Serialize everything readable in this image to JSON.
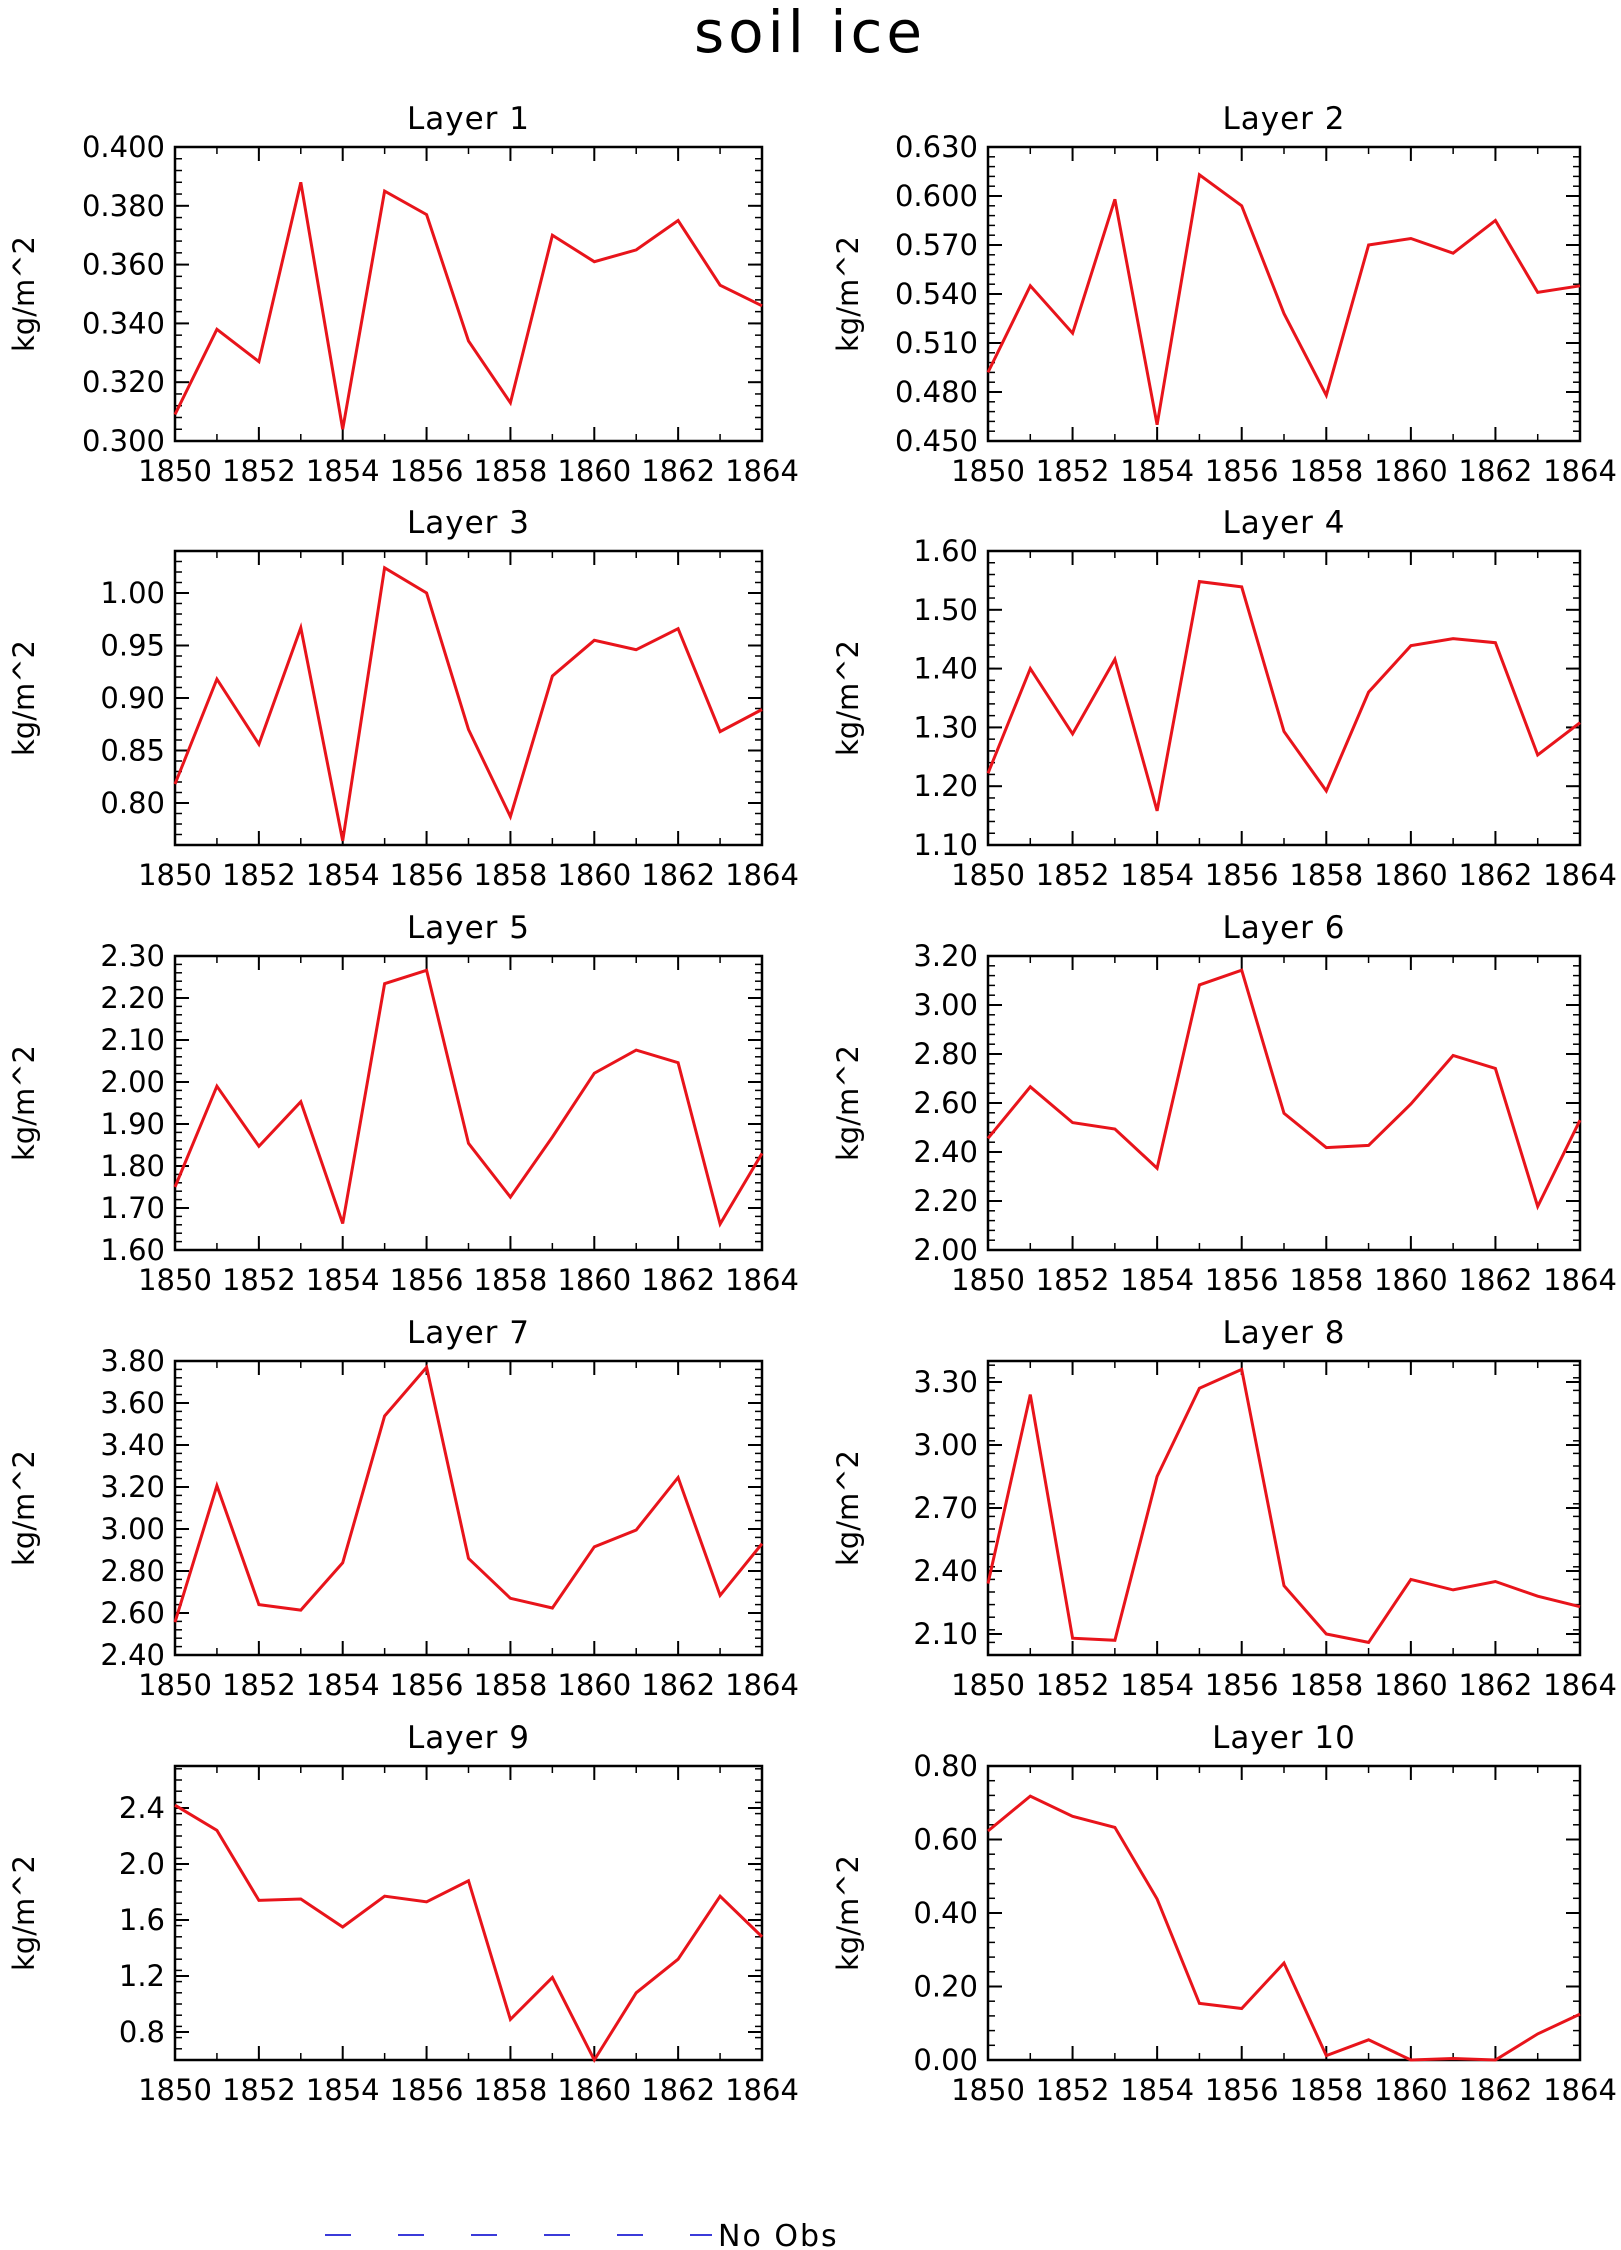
{
  "figure": {
    "title": "soil ice"
  },
  "legend": {
    "label": "No Obs",
    "line_color": "#3b3bd9",
    "line_style": "dashed"
  },
  "colors": {
    "series": "#e8141b",
    "axes": "#000000",
    "background": "#ffffff"
  },
  "chart_data": [
    {
      "type": "line",
      "title": "Layer 1",
      "ylabel": "kg/m^2",
      "x": [
        1850,
        1851,
        1852,
        1853,
        1854,
        1855,
        1856,
        1857,
        1858,
        1859,
        1860,
        1861,
        1862,
        1863,
        1864
      ],
      "xticks": [
        "1850",
        "1852",
        "1854",
        "1856",
        "1858",
        "1860",
        "1862",
        "1864"
      ],
      "xlim": [
        1850,
        1864
      ],
      "ylim": [
        0.3,
        0.4
      ],
      "yticks": [
        "0.300",
        "0.320",
        "0.340",
        "0.360",
        "0.380",
        "0.400"
      ],
      "yticks_values": [
        0.3,
        0.32,
        0.34,
        0.36,
        0.38,
        0.4
      ],
      "series": [
        {
          "values": [
            0.309,
            0.338,
            0.327,
            0.388,
            0.304,
            0.385,
            0.377,
            0.334,
            0.313,
            0.37,
            0.361,
            0.365,
            0.375,
            0.353,
            0.346
          ]
        }
      ]
    },
    {
      "type": "line",
      "title": "Layer 2",
      "ylabel": "kg/m^2",
      "x": [
        1850,
        1851,
        1852,
        1853,
        1854,
        1855,
        1856,
        1857,
        1858,
        1859,
        1860,
        1861,
        1862,
        1863,
        1864
      ],
      "xticks": [
        "1850",
        "1852",
        "1854",
        "1856",
        "1858",
        "1860",
        "1862",
        "1864"
      ],
      "xlim": [
        1850,
        1864
      ],
      "ylim": [
        0.45,
        0.63
      ],
      "yticks": [
        "0.450",
        "0.480",
        "0.510",
        "0.540",
        "0.570",
        "0.600",
        "0.630"
      ],
      "yticks_values": [
        0.45,
        0.48,
        0.51,
        0.54,
        0.57,
        0.6,
        0.63
      ],
      "series": [
        {
          "values": [
            0.492,
            0.545,
            0.516,
            0.598,
            0.46,
            0.613,
            0.594,
            0.528,
            0.478,
            0.57,
            0.574,
            0.565,
            0.585,
            0.541,
            0.545
          ]
        }
      ]
    },
    {
      "type": "line",
      "title": "Layer 3",
      "ylabel": "kg/m^2",
      "x": [
        1850,
        1851,
        1852,
        1853,
        1854,
        1855,
        1856,
        1857,
        1858,
        1859,
        1860,
        1861,
        1862,
        1863,
        1864
      ],
      "xticks": [
        "1850",
        "1852",
        "1854",
        "1856",
        "1858",
        "1860",
        "1862",
        "1864"
      ],
      "xlim": [
        1850,
        1864
      ],
      "ylim": [
        0.76,
        1.04
      ],
      "yticks": [
        "0.80",
        "0.85",
        "0.90",
        "0.95",
        "1.00"
      ],
      "yticks_values": [
        0.8,
        0.85,
        0.9,
        0.95,
        1.0
      ],
      "series": [
        {
          "values": [
            0.818,
            0.918,
            0.856,
            0.967,
            0.764,
            1.024,
            1.0,
            0.87,
            0.787,
            0.921,
            0.955,
            0.946,
            0.966,
            0.868,
            0.889
          ]
        }
      ]
    },
    {
      "type": "line",
      "title": "Layer 4",
      "ylabel": "kg/m^2",
      "x": [
        1850,
        1851,
        1852,
        1853,
        1854,
        1855,
        1856,
        1857,
        1858,
        1859,
        1860,
        1861,
        1862,
        1863,
        1864
      ],
      "xticks": [
        "1850",
        "1852",
        "1854",
        "1856",
        "1858",
        "1860",
        "1862",
        "1864"
      ],
      "xlim": [
        1850,
        1864
      ],
      "ylim": [
        1.1,
        1.6
      ],
      "yticks": [
        "1.10",
        "1.20",
        "1.30",
        "1.40",
        "1.50",
        "1.60"
      ],
      "yticks_values": [
        1.1,
        1.2,
        1.3,
        1.4,
        1.5,
        1.6
      ],
      "series": [
        {
          "values": [
            1.222,
            1.4,
            1.289,
            1.416,
            1.158,
            1.548,
            1.539,
            1.293,
            1.192,
            1.36,
            1.439,
            1.451,
            1.444,
            1.253,
            1.308
          ]
        }
      ]
    },
    {
      "type": "line",
      "title": "Layer 5",
      "ylabel": "kg/m^2",
      "x": [
        1850,
        1851,
        1852,
        1853,
        1854,
        1855,
        1856,
        1857,
        1858,
        1859,
        1860,
        1861,
        1862,
        1863,
        1864
      ],
      "xticks": [
        "1850",
        "1852",
        "1854",
        "1856",
        "1858",
        "1860",
        "1862",
        "1864"
      ],
      "xlim": [
        1850,
        1864
      ],
      "ylim": [
        1.6,
        2.3
      ],
      "yticks": [
        "1.60",
        "1.70",
        "1.80",
        "1.90",
        "2.00",
        "2.10",
        "2.20",
        "2.30"
      ],
      "yticks_values": [
        1.6,
        1.7,
        1.8,
        1.9,
        2.0,
        2.1,
        2.2,
        2.3
      ],
      "series": [
        {
          "values": [
            1.75,
            1.99,
            1.847,
            1.953,
            1.663,
            2.234,
            2.266,
            1.854,
            1.726,
            1.869,
            2.021,
            2.076,
            2.046,
            1.662,
            1.83
          ]
        }
      ]
    },
    {
      "type": "line",
      "title": "Layer 6",
      "ylabel": "kg/m^2",
      "x": [
        1850,
        1851,
        1852,
        1853,
        1854,
        1855,
        1856,
        1857,
        1858,
        1859,
        1860,
        1861,
        1862,
        1863,
        1864
      ],
      "xticks": [
        "1850",
        "1852",
        "1854",
        "1856",
        "1858",
        "1860",
        "1862",
        "1864"
      ],
      "xlim": [
        1850,
        1864
      ],
      "ylim": [
        2.0,
        3.2
      ],
      "yticks": [
        "2.00",
        "2.20",
        "2.40",
        "2.60",
        "2.80",
        "3.00",
        "3.20"
      ],
      "yticks_values": [
        2.0,
        2.2,
        2.4,
        2.6,
        2.8,
        3.0,
        3.2
      ],
      "series": [
        {
          "values": [
            2.456,
            2.666,
            2.52,
            2.494,
            2.334,
            3.082,
            3.142,
            2.558,
            2.418,
            2.427,
            2.596,
            2.794,
            2.741,
            2.178,
            2.53
          ]
        }
      ]
    },
    {
      "type": "line",
      "title": "Layer 7",
      "ylabel": "kg/m^2",
      "x": [
        1850,
        1851,
        1852,
        1853,
        1854,
        1855,
        1856,
        1857,
        1858,
        1859,
        1860,
        1861,
        1862,
        1863,
        1864
      ],
      "xticks": [
        "1850",
        "1852",
        "1854",
        "1856",
        "1858",
        "1860",
        "1862",
        "1864"
      ],
      "xlim": [
        1850,
        1864
      ],
      "ylim": [
        2.4,
        3.8
      ],
      "yticks": [
        "2.40",
        "2.60",
        "2.80",
        "3.00",
        "3.20",
        "3.40",
        "3.60",
        "3.80"
      ],
      "yticks_values": [
        2.4,
        2.6,
        2.8,
        3.0,
        3.2,
        3.4,
        3.6,
        3.8
      ],
      "series": [
        {
          "values": [
            2.556,
            3.206,
            2.64,
            2.614,
            2.839,
            3.538,
            3.77,
            2.86,
            2.67,
            2.624,
            2.915,
            2.995,
            3.245,
            2.684,
            2.93
          ]
        }
      ]
    },
    {
      "type": "line",
      "title": "Layer 8",
      "ylabel": "kg/m^2",
      "x": [
        1850,
        1851,
        1852,
        1853,
        1854,
        1855,
        1856,
        1857,
        1858,
        1859,
        1860,
        1861,
        1862,
        1863,
        1864
      ],
      "xticks": [
        "1850",
        "1852",
        "1854",
        "1856",
        "1858",
        "1860",
        "1862",
        "1864"
      ],
      "xlim": [
        1850,
        1864
      ],
      "ylim": [
        2.0,
        3.4
      ],
      "yticks": [
        "2.10",
        "2.40",
        "2.70",
        "3.00",
        "3.30"
      ],
      "yticks_values": [
        2.1,
        2.4,
        2.7,
        3.0,
        3.3
      ],
      "series": [
        {
          "values": [
            2.34,
            3.24,
            2.08,
            2.07,
            2.85,
            3.27,
            3.36,
            2.33,
            2.1,
            2.06,
            2.36,
            2.31,
            2.35,
            2.28,
            2.23
          ]
        }
      ]
    },
    {
      "type": "line",
      "title": "Layer 9",
      "ylabel": "kg/m^2",
      "x": [
        1850,
        1851,
        1852,
        1853,
        1854,
        1855,
        1856,
        1857,
        1858,
        1859,
        1860,
        1861,
        1862,
        1863,
        1864
      ],
      "xticks": [
        "1850",
        "1852",
        "1854",
        "1856",
        "1858",
        "1860",
        "1862",
        "1864"
      ],
      "xlim": [
        1850,
        1864
      ],
      "ylim": [
        0.6,
        2.7
      ],
      "yticks": [
        "0.8",
        "1.2",
        "1.6",
        "2.0",
        "2.4"
      ],
      "yticks_values": [
        0.8,
        1.2,
        1.6,
        2.0,
        2.4
      ],
      "series": [
        {
          "values": [
            2.42,
            2.24,
            1.74,
            1.75,
            1.55,
            1.77,
            1.73,
            1.88,
            0.89,
            1.19,
            0.6,
            1.08,
            1.32,
            1.77,
            1.48
          ]
        }
      ]
    },
    {
      "type": "line",
      "title": "Layer 10",
      "ylabel": "kg/m^2",
      "x": [
        1850,
        1851,
        1852,
        1853,
        1854,
        1855,
        1856,
        1857,
        1858,
        1859,
        1860,
        1861,
        1862,
        1863,
        1864
      ],
      "xticks": [
        "1850",
        "1852",
        "1854",
        "1856",
        "1858",
        "1860",
        "1862",
        "1864"
      ],
      "xlim": [
        1850,
        1864
      ],
      "ylim": [
        0.0,
        0.8
      ],
      "yticks": [
        "0.00",
        "0.20",
        "0.40",
        "0.60",
        "0.80"
      ],
      "yticks_values": [
        0.0,
        0.2,
        0.4,
        0.6,
        0.8
      ],
      "series": [
        {
          "values": [
            0.623,
            0.718,
            0.663,
            0.633,
            0.438,
            0.154,
            0.14,
            0.264,
            0.012,
            0.055,
            0.0,
            0.004,
            0.0,
            0.071,
            0.125
          ]
        }
      ]
    }
  ]
}
